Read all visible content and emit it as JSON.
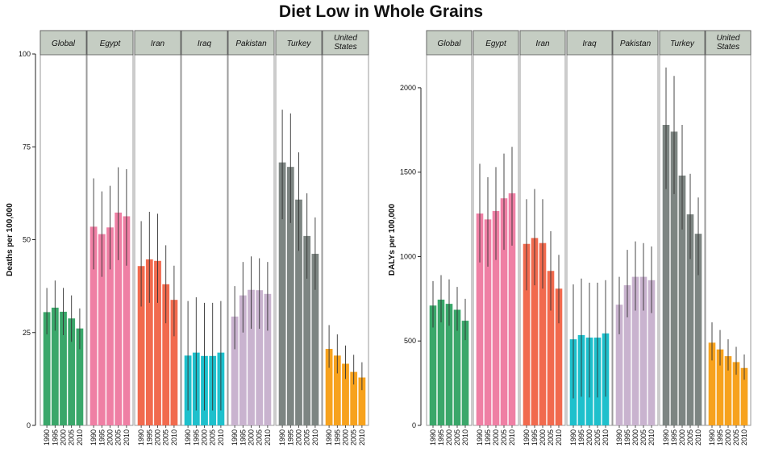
{
  "title": "Diet Low in Whole Grains",
  "categories": [
    "1990",
    "1995",
    "2000",
    "2005",
    "2010"
  ],
  "countries": [
    "Global",
    "Egypt",
    "Iran",
    "Iraq",
    "Pakistan",
    "Turkey",
    "United States"
  ],
  "strip_lines": {
    "Global": [
      "Global"
    ],
    "Egypt": [
      "Egypt"
    ],
    "Iran": [
      "Iran"
    ],
    "Iraq": [
      "Iraq"
    ],
    "Pakistan": [
      "Pakistan"
    ],
    "Turkey": [
      "Turkey"
    ],
    "United States": [
      "United",
      "States"
    ]
  },
  "colors": {
    "Global": "#3aa76a",
    "Egypt": "#ef7fa4",
    "Iran": "#f16a4e",
    "Iraq": "#1ec0cc",
    "Pakistan": "#c9b3cf",
    "Turkey": "#7d8582",
    "United States": "#f7a21d"
  },
  "strip_fill": "#c5cdc3",
  "chart_data": [
    {
      "type": "bar",
      "ylabel": "Deaths per 100,000",
      "ylim": [
        0,
        100
      ],
      "yticks": [
        0,
        25,
        50,
        75,
        100
      ],
      "categories": [
        "1990",
        "1995",
        "2000",
        "2005",
        "2010"
      ],
      "series": [
        {
          "name": "Global",
          "values": [
            30.5,
            31.7,
            30.6,
            28.8,
            26.1
          ],
          "lower": [
            24.5,
            25.5,
            24.3,
            22.5,
            20.5
          ],
          "upper": [
            37.0,
            39.0,
            37.0,
            35.0,
            31.5
          ]
        },
        {
          "name": "Egypt",
          "values": [
            53.5,
            51.5,
            53.3,
            57.3,
            56.3
          ],
          "lower": [
            42.0,
            40.0,
            42.0,
            44.5,
            43.0
          ],
          "upper": [
            66.5,
            63.0,
            64.5,
            69.5,
            69.0
          ]
        },
        {
          "name": "Iran",
          "values": [
            42.9,
            44.7,
            44.3,
            38.0,
            33.8
          ],
          "lower": [
            32.0,
            33.0,
            33.0,
            27.5,
            24.0
          ],
          "upper": [
            55.0,
            57.5,
            57.0,
            48.5,
            43.0
          ]
        },
        {
          "name": "Iraq",
          "values": [
            18.8,
            19.6,
            18.7,
            18.7,
            19.6
          ],
          "lower": [
            4.0,
            4.0,
            4.0,
            4.0,
            4.0
          ],
          "upper": [
            33.5,
            34.5,
            33.0,
            33.0,
            33.5
          ]
        },
        {
          "name": "Pakistan",
          "values": [
            29.3,
            35.0,
            36.5,
            36.4,
            35.4
          ],
          "lower": [
            20.5,
            25.0,
            26.0,
            26.0,
            25.5
          ],
          "upper": [
            37.5,
            44.0,
            45.5,
            45.0,
            44.0
          ]
        },
        {
          "name": "Turkey",
          "values": [
            70.8,
            69.6,
            60.8,
            51.0,
            46.2
          ],
          "lower": [
            55.5,
            54.5,
            47.0,
            39.5,
            36.5
          ],
          "upper": [
            85.0,
            84.0,
            73.5,
            62.5,
            56.0
          ]
        },
        {
          "name": "United States",
          "values": [
            20.6,
            18.8,
            16.6,
            14.4,
            12.9
          ],
          "lower": [
            15.5,
            14.0,
            12.5,
            11.0,
            9.5
          ],
          "upper": [
            27.0,
            24.5,
            21.5,
            19.0,
            17.0
          ]
        }
      ]
    },
    {
      "type": "bar",
      "ylabel": "DALYs per 100,000",
      "ylim": [
        0,
        2200
      ],
      "yticks": [
        0,
        500,
        1000,
        1500,
        2000
      ],
      "categories": [
        "1990",
        "1995",
        "2000",
        "2005",
        "2010"
      ],
      "series": [
        {
          "name": "Global",
          "values": [
            710,
            745,
            720,
            685,
            620
          ],
          "lower": [
            580,
            610,
            590,
            560,
            505
          ],
          "upper": [
            855,
            890,
            865,
            820,
            750
          ]
        },
        {
          "name": "Egypt",
          "values": [
            1255,
            1220,
            1270,
            1345,
            1375
          ],
          "lower": [
            965,
            940,
            980,
            1040,
            1065
          ],
          "upper": [
            1550,
            1470,
            1530,
            1610,
            1650
          ]
        },
        {
          "name": "Iran",
          "values": [
            1075,
            1110,
            1080,
            915,
            810
          ],
          "lower": [
            800,
            830,
            810,
            680,
            605
          ],
          "upper": [
            1340,
            1400,
            1340,
            1150,
            1010
          ]
        },
        {
          "name": "Iraq",
          "values": [
            510,
            535,
            520,
            520,
            545
          ],
          "lower": [
            160,
            170,
            165,
            165,
            170
          ],
          "upper": [
            835,
            870,
            845,
            845,
            860
          ]
        },
        {
          "name": "Pakistan",
          "values": [
            715,
            830,
            880,
            880,
            860
          ],
          "lower": [
            540,
            640,
            680,
            680,
            665
          ],
          "upper": [
            880,
            1040,
            1090,
            1080,
            1060
          ]
        },
        {
          "name": "Turkey",
          "values": [
            1780,
            1740,
            1480,
            1250,
            1135
          ],
          "lower": [
            1400,
            1370,
            1160,
            985,
            890
          ],
          "upper": [
            2120,
            2070,
            1780,
            1490,
            1350
          ]
        },
        {
          "name": "United States",
          "values": [
            490,
            450,
            410,
            375,
            340
          ],
          "lower": [
            385,
            355,
            325,
            300,
            270
          ],
          "upper": [
            610,
            565,
            510,
            465,
            420
          ]
        }
      ]
    }
  ]
}
